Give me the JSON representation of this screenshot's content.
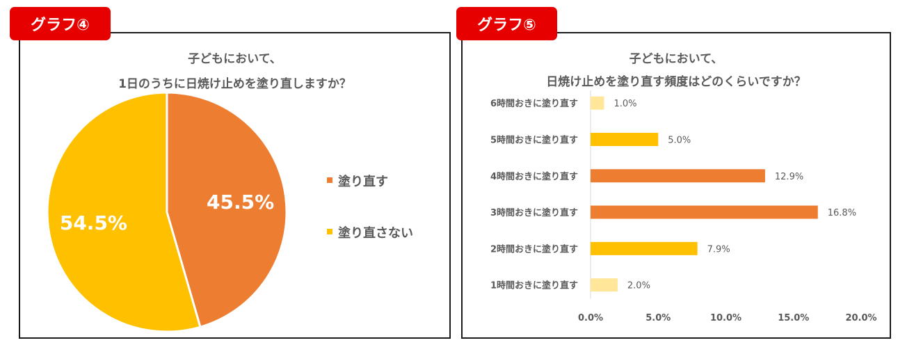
{
  "charts": [
    {
      "tag_label": "グラフ④",
      "title_line1": "子どもにおいて、",
      "title_line2": "1日のうちに日焼け止めを塗り直しますか？"
    },
    {
      "tag_label": "グラフ⑤",
      "title_line1": "子どもにおいて、",
      "title_line2": "日焼け止めを塗り直す頻度はどのくらいですか？"
    }
  ],
  "chart_data": [
    {
      "type": "pie",
      "title": "子どもにおいて、1日のうちに日焼け止めを塗り直しますか？",
      "categories": [
        "塗り直す",
        "塗り直さない"
      ],
      "values": [
        45.5,
        54.5
      ],
      "value_labels": [
        "45.5%",
        "54.5%"
      ],
      "colors": [
        "#ed7d31",
        "#ffc000"
      ],
      "legend": "right"
    },
    {
      "type": "bar",
      "orientation": "horizontal",
      "title": "子どもにおいて、日焼け止めを塗り直す頻度はどのくらいですか？",
      "categories": [
        "6時間おきに塗り直す",
        "5時間おきに塗り直す",
        "4時間おきに塗り直す",
        "3時間おきに塗り直す",
        "2時間おきに塗り直す",
        "1時間おきに塗り直す"
      ],
      "values": [
        1.0,
        5.0,
        12.9,
        16.8,
        7.9,
        2.0
      ],
      "value_labels": [
        "1.0%",
        "5.0%",
        "12.9%",
        "16.8%",
        "7.9%",
        "2.0%"
      ],
      "colors": [
        "#ffe699",
        "#ffc000",
        "#ed7d31",
        "#ed7d31",
        "#ffc000",
        "#ffe699"
      ],
      "xlim": [
        0,
        20
      ],
      "xticks": [
        "0.0%",
        "5.0%",
        "10.0%",
        "15.0%",
        "20.0%"
      ],
      "grid": false,
      "legend": "none"
    }
  ]
}
